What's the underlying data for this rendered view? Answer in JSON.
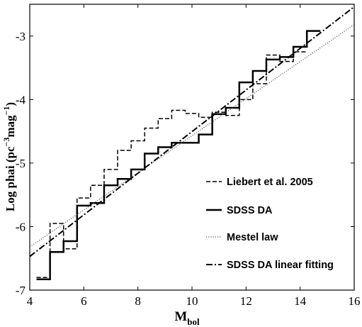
{
  "chart_data": {
    "type": "line",
    "xlabel_main": "M",
    "xlabel_sub": "bol",
    "ylabel_main": "Log phai (pc",
    "ylabel_sup1": "−3",
    "ylabel_mid": "mag",
    "ylabel_sup2": "−1",
    "ylabel_end": ")",
    "xlim": [
      4,
      16
    ],
    "ylim": [
      -7,
      -2.5
    ],
    "xticks": [
      "4",
      "6",
      "8",
      "10",
      "12",
      "14",
      "16"
    ],
    "yticks": [
      "-7",
      "-6",
      "-5",
      "-4",
      "-3"
    ],
    "xtick_values": [
      4,
      6,
      8,
      10,
      12,
      14,
      16
    ],
    "ytick_values": [
      -7,
      -6,
      -5,
      -4,
      -3
    ],
    "grid": false,
    "legend_position": "lower-right",
    "series": [
      {
        "name": "Liebert et al. 2005",
        "style": "dashed-step",
        "color": "#000000",
        "edges": [
          4.25,
          4.75,
          5.25,
          5.75,
          6.25,
          6.75,
          7.25,
          7.75,
          8.25,
          8.75,
          9.25,
          9.75,
          10.25,
          10.75,
          11.25,
          11.75,
          12.25,
          12.75,
          13.25,
          13.75,
          14.25
        ],
        "values": [
          -6.8,
          -5.95,
          -6.35,
          -5.55,
          -5.35,
          -5.1,
          -4.8,
          -4.65,
          -4.45,
          -4.3,
          -4.17,
          -4.22,
          -4.28,
          -4.2,
          -4.25,
          -4.0,
          -3.75,
          -3.3,
          -3.4,
          -3.25
        ]
      },
      {
        "name": "SDSS DA",
        "style": "solid-step",
        "color": "#000000",
        "edges": [
          4.25,
          4.75,
          5.25,
          5.75,
          6.25,
          6.75,
          7.25,
          7.75,
          8.25,
          8.75,
          9.25,
          9.75,
          10.25,
          10.75,
          11.25,
          11.75,
          12.25,
          12.75,
          13.25,
          13.75,
          14.25,
          14.75
        ],
        "values": [
          -6.83,
          -6.4,
          -6.23,
          -5.67,
          -5.63,
          -5.35,
          -5.25,
          -5.1,
          -4.85,
          -4.75,
          -4.68,
          -4.68,
          -4.55,
          -4.23,
          -4.13,
          -3.73,
          -3.55,
          -3.37,
          -3.33,
          -3.17,
          -2.92
        ]
      },
      {
        "name": "Mestel law",
        "style": "dotted-line",
        "color": "#555555",
        "x": [
          4.0,
          16.0
        ],
        "y": [
          -6.32,
          -2.82
        ]
      },
      {
        "name": "SDSS DA linear fitting",
        "style": "dashdot-line",
        "color": "#000000",
        "x": [
          4.0,
          16.0
        ],
        "y": [
          -6.47,
          -2.54
        ]
      }
    ]
  }
}
